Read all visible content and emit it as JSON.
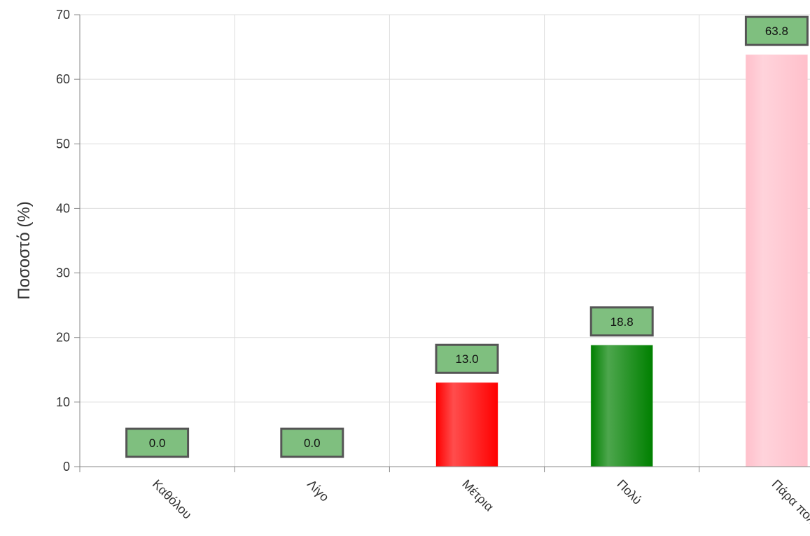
{
  "chart_data": {
    "type": "bar",
    "categories": [
      "Καθόλου",
      "Λίγο",
      "Μέτρια",
      "Πολύ",
      "Πάρα πολύ"
    ],
    "values": [
      0.0,
      0.0,
      13.0,
      18.8,
      63.8
    ],
    "data_labels": [
      "0.0",
      "0.0",
      "13.0",
      "18.8",
      "63.8"
    ],
    "bar_colors": [
      "#ff0000",
      "#ff0000",
      "#ff0000",
      "#008000",
      "#ffc0cb"
    ],
    "title": "",
    "xlabel": "",
    "ylabel": "Ποσοστό (%)",
    "ylim": [
      0,
      70
    ],
    "yticks": [
      0,
      10,
      20,
      30,
      40,
      50,
      60,
      70
    ],
    "ytick_labels": [
      "0",
      "10",
      "20",
      "30",
      "40",
      "50",
      "60",
      "70"
    ],
    "grid": true,
    "legend": "none",
    "data_label_style": {
      "background": "#7fbf7f",
      "border": "#555555"
    }
  }
}
